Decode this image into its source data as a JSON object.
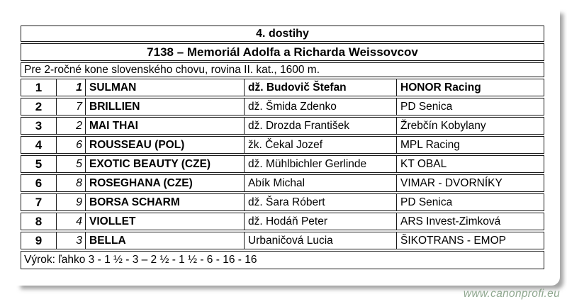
{
  "document": {
    "race_number_title": "4. dostihy",
    "race_name": "7138 – Memoriál Adolfa a Richarda Weissovcov",
    "race_conditions": "Pre 2-ročné kone slovenského chovu, rovina II. kat., 1600 m.",
    "verdict": "Výrok: ľahko 3 - 1 ½ - 3 – 2 ½ - 1 ½ - 6 - 16 - 16"
  },
  "results_table": {
    "rows": [
      {
        "place": "1",
        "start_number": "1",
        "horse": "SULMAN",
        "jockey": "dž. Budovič Štefan",
        "stable": "HONOR Racing",
        "winner": true
      },
      {
        "place": "2",
        "start_number": "7",
        "horse": "BRILLIEN",
        "jockey": "dž. Šmida Zdenko",
        "stable": "PD Senica",
        "winner": false
      },
      {
        "place": "3",
        "start_number": "2",
        "horse": "MAI THAI",
        "jockey": "dž. Drozda František",
        "stable": "Žrebčín Kobylany",
        "winner": false
      },
      {
        "place": "4",
        "start_number": "6",
        "horse": "ROUSSEAU (POL)",
        "jockey": "žk. Čekal Jozef",
        "stable": "MPL Racing",
        "winner": false
      },
      {
        "place": "5",
        "start_number": "5",
        "horse": "EXOTIC BEAUTY (CZE)",
        "jockey": "dž. Mühlbichler Gerlinde",
        "stable": "KT OBAL",
        "winner": false
      },
      {
        "place": "6",
        "start_number": "8",
        "horse": "ROSEGHANA (CZE)",
        "jockey": "Abík Michal",
        "stable": "VIMAR - DVORNÍKY",
        "winner": false
      },
      {
        "place": "7",
        "start_number": "9",
        "horse": "BORSA SCHARM",
        "jockey": "dž. Šara Róbert",
        "stable": "PD Senica",
        "winner": false
      },
      {
        "place": "8",
        "start_number": "4",
        "horse": "VIOLLET",
        "jockey": "dž. Hodáň Peter",
        "stable": "ARS Invest-Zimková",
        "winner": false
      },
      {
        "place": "9",
        "start_number": "3",
        "horse": "BELLA",
        "jockey": "Urbaničová Lucia",
        "stable": "ŠIKOTRANS - EMOP",
        "winner": false
      }
    ]
  },
  "watermark": {
    "text": "www.canonprofi.eu"
  },
  "colors": {
    "table_border": "#1b1b1b",
    "text": "#000000",
    "page_background": "#ffffff",
    "watermark_text": "#8fa78f",
    "page_shadow": "#5a5a5a"
  }
}
